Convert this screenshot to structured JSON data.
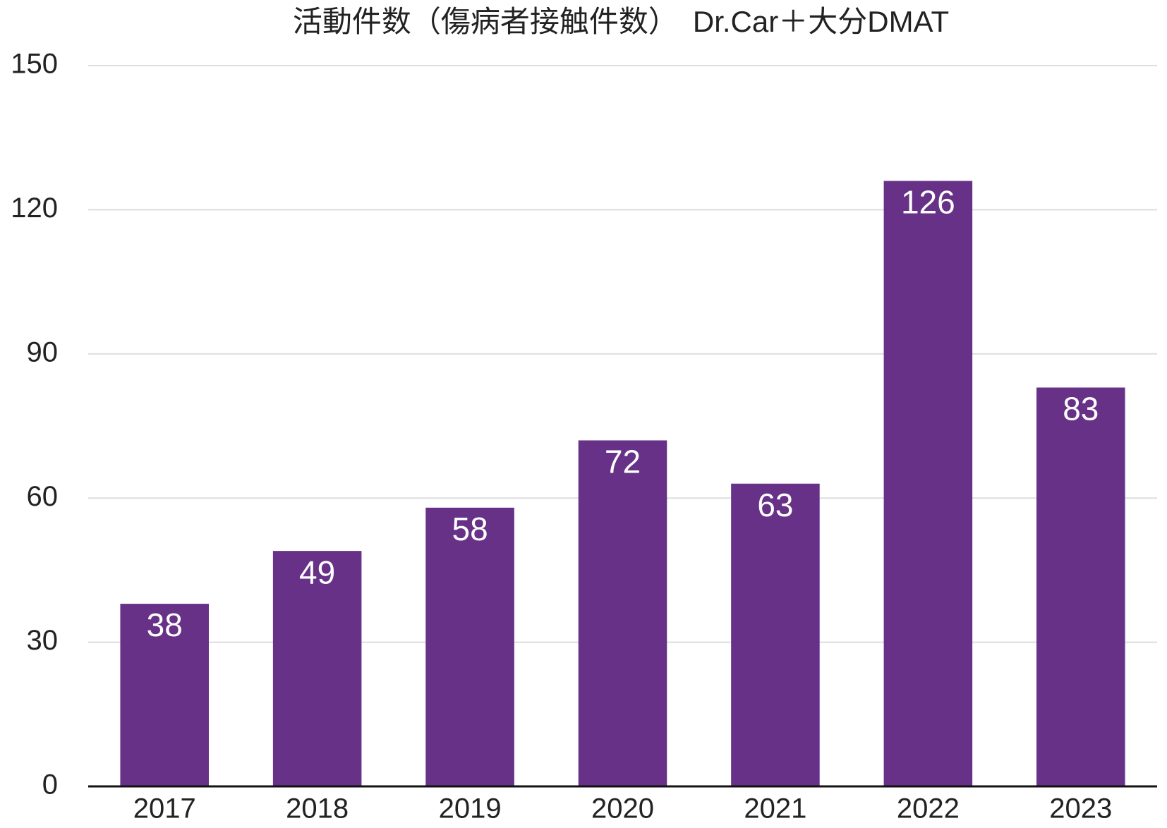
{
  "chart_data": {
    "type": "bar",
    "title": "活動件数（傷病者接触件数）　Dr.Car＋大分DMAT",
    "categories": [
      "2017",
      "2018",
      "2019",
      "2020",
      "2021",
      "2022",
      "2023"
    ],
    "values": [
      38,
      49,
      58,
      72,
      63,
      126,
      83
    ],
    "color": "#673187",
    "ylim": [
      0,
      150
    ],
    "yticks": [
      0,
      30,
      60,
      90,
      120,
      150
    ],
    "grid": true
  }
}
